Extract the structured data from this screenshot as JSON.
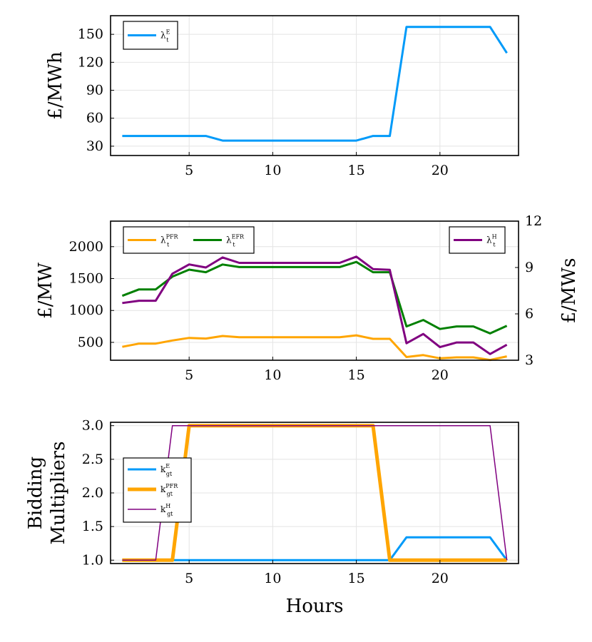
{
  "chart_data": [
    {
      "type": "line",
      "id": "energy-price",
      "xlim": [
        0.3,
        24.7
      ],
      "ylim": [
        20,
        170
      ],
      "xticks": [
        5,
        10,
        15,
        20
      ],
      "yticks": [
        30,
        60,
        90,
        120,
        150
      ],
      "ylabel": "£/MWh",
      "legend_position": "top-left",
      "grid": true,
      "series": [
        {
          "name": "λ_t^E",
          "legend_base": "λ",
          "legend_sub": "t",
          "legend_sup": "E",
          "color": "#009af9",
          "width": 3,
          "axis": "left",
          "x": [
            1,
            2,
            3,
            4,
            5,
            6,
            7,
            8,
            9,
            10,
            11,
            12,
            13,
            14,
            15,
            16,
            17,
            18,
            19,
            20,
            21,
            22,
            23,
            24
          ],
          "values": [
            41,
            41,
            41,
            41,
            41,
            41,
            36,
            36,
            36,
            36,
            36,
            36,
            36,
            36,
            36,
            41,
            41,
            158,
            158,
            158,
            158,
            158,
            158,
            130
          ]
        }
      ]
    },
    {
      "type": "line",
      "id": "service-prices",
      "xlim": [
        0.3,
        24.7
      ],
      "ylim": [
        220,
        2400
      ],
      "y2lim": [
        3,
        12
      ],
      "xticks": [
        5,
        10,
        15,
        20
      ],
      "yticks": [
        500,
        1000,
        1500,
        2000
      ],
      "y2ticks": [
        3,
        6,
        9,
        12
      ],
      "ylabel": "£/MW",
      "y2label": "£/MWs",
      "legend_position": "top-left and top-right",
      "grid": true,
      "series": [
        {
          "name": "λ_t^PFR",
          "legend_base": "λ",
          "legend_sub": "t",
          "legend_sup": "PFR",
          "color": "#ffa500",
          "width": 3,
          "axis": "left",
          "x": [
            1,
            2,
            3,
            4,
            5,
            6,
            7,
            8,
            9,
            10,
            11,
            12,
            13,
            14,
            15,
            16,
            17,
            18,
            19,
            20,
            21,
            22,
            23,
            24
          ],
          "values": [
            430,
            480,
            480,
            530,
            570,
            560,
            600,
            580,
            580,
            580,
            580,
            580,
            580,
            580,
            610,
            555,
            555,
            270,
            300,
            250,
            265,
            265,
            225,
            280
          ]
        },
        {
          "name": "λ_t^EFR",
          "legend_base": "λ",
          "legend_sub": "t",
          "legend_sup": "EFR",
          "color": "#008000",
          "width": 3,
          "axis": "left",
          "x": [
            1,
            2,
            3,
            4,
            5,
            6,
            7,
            8,
            9,
            10,
            11,
            12,
            13,
            14,
            15,
            16,
            17,
            18,
            19,
            20,
            21,
            22,
            23,
            24
          ],
          "values": [
            1230,
            1330,
            1330,
            1530,
            1640,
            1600,
            1720,
            1680,
            1680,
            1680,
            1680,
            1680,
            1680,
            1680,
            1760,
            1600,
            1600,
            750,
            850,
            710,
            750,
            750,
            640,
            760
          ]
        },
        {
          "name": "λ_t^H",
          "legend_base": "λ",
          "legend_sub": "t",
          "legend_sup": "H",
          "color": "#800080",
          "width": 3,
          "axis": "right",
          "x": [
            1,
            2,
            3,
            4,
            5,
            6,
            7,
            8,
            9,
            10,
            11,
            12,
            13,
            14,
            15,
            16,
            17,
            18,
            19,
            20,
            21,
            22,
            23,
            24
          ],
          "values": [
            6.7,
            6.85,
            6.85,
            8.6,
            9.2,
            9.0,
            9.65,
            9.3,
            9.3,
            9.3,
            9.3,
            9.3,
            9.3,
            9.3,
            9.7,
            8.9,
            8.85,
            4.1,
            4.7,
            3.85,
            4.15,
            4.15,
            3.4,
            4.0
          ]
        }
      ]
    },
    {
      "type": "line",
      "id": "bidding-multipliers",
      "xlim": [
        0.3,
        24.7
      ],
      "xticks": [
        5,
        10,
        15,
        20
      ],
      "ylim": [
        0.95,
        3.05
      ],
      "yticks": [
        1.0,
        1.5,
        2.0,
        2.5,
        3.0
      ],
      "ytick_labels": [
        "1.0",
        "1.5",
        "2.0",
        "2.5",
        "3.0"
      ],
      "ylabel_lines": [
        "Bidding",
        "Multipliers"
      ],
      "xlabel": "Hours",
      "legend_position": "middle-left",
      "grid": true,
      "series": [
        {
          "name": "k_gt^E",
          "legend_base": "k",
          "legend_sub": "gt",
          "legend_sup": "E",
          "color": "#009af9",
          "width": 3,
          "axis": "left",
          "x": [
            1,
            2,
            3,
            4,
            5,
            6,
            7,
            8,
            9,
            10,
            11,
            12,
            13,
            14,
            15,
            16,
            17,
            18,
            19,
            20,
            21,
            22,
            23,
            24
          ],
          "values": [
            1,
            1,
            1,
            1,
            1,
            1,
            1,
            1,
            1,
            1,
            1,
            1,
            1,
            1,
            1,
            1,
            1,
            1.34,
            1.34,
            1.34,
            1.34,
            1.34,
            1.34,
            1
          ]
        },
        {
          "name": "k_gt^PFR",
          "legend_base": "k",
          "legend_sub": "gt",
          "legend_sup": "PFR",
          "color": "#ffa500",
          "width": 5,
          "axis": "left",
          "x": [
            1,
            2,
            3,
            4,
            5,
            6,
            7,
            8,
            9,
            10,
            11,
            12,
            13,
            14,
            15,
            16,
            17,
            18,
            19,
            20,
            21,
            22,
            23,
            24
          ],
          "values": [
            1,
            1,
            1,
            1,
            3,
            3,
            3,
            3,
            3,
            3,
            3,
            3,
            3,
            3,
            3,
            3,
            1,
            1,
            1,
            1,
            1,
            1,
            1,
            1
          ]
        },
        {
          "name": "k_gt^H",
          "legend_base": "k",
          "legend_sub": "gt",
          "legend_sup": "H",
          "color": "#800080",
          "width": 1.5,
          "axis": "left",
          "x": [
            1,
            2,
            3,
            4,
            5,
            6,
            7,
            8,
            9,
            10,
            11,
            12,
            13,
            14,
            15,
            16,
            17,
            18,
            19,
            20,
            21,
            22,
            23,
            24
          ],
          "values": [
            1,
            1,
            1,
            3,
            3,
            3,
            3,
            3,
            3,
            3,
            3,
            3,
            3,
            3,
            3,
            3,
            3,
            3,
            3,
            3,
            3,
            3,
            3,
            1
          ]
        }
      ]
    }
  ]
}
